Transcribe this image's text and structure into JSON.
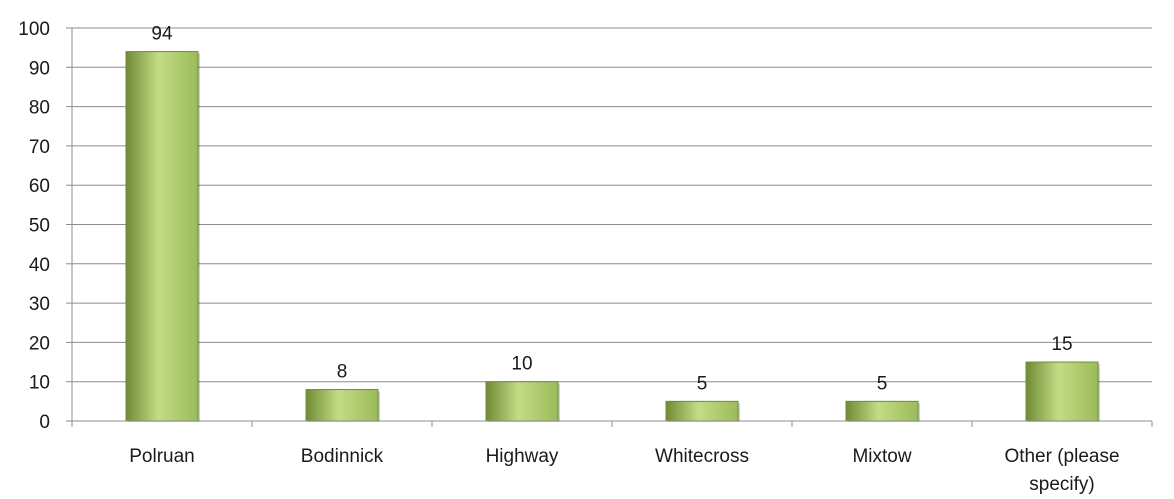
{
  "chart_data": {
    "type": "bar",
    "categories": [
      "Polruan",
      "Bodinnick",
      "Highway",
      "Whitecross",
      "Mixtow",
      "Other (please specify)"
    ],
    "values": [
      94,
      8,
      10,
      5,
      5,
      15
    ],
    "data_labels": [
      "94",
      "8",
      "10",
      "5",
      "5",
      "15"
    ],
    "title": "",
    "xlabel": "",
    "ylabel": "",
    "ylim": [
      0,
      100
    ],
    "yticks": [
      0,
      10,
      20,
      30,
      40,
      50,
      60,
      70,
      80,
      90,
      100
    ],
    "grid": true,
    "legend": "none",
    "colors": {
      "bar": "#9bbb59",
      "bar_light": "#c3dc86",
      "bar_dark": "#6f8b34",
      "grid": "#8c8c8c",
      "axis": "#8c8c8c",
      "text": "#1a1a1a"
    }
  }
}
